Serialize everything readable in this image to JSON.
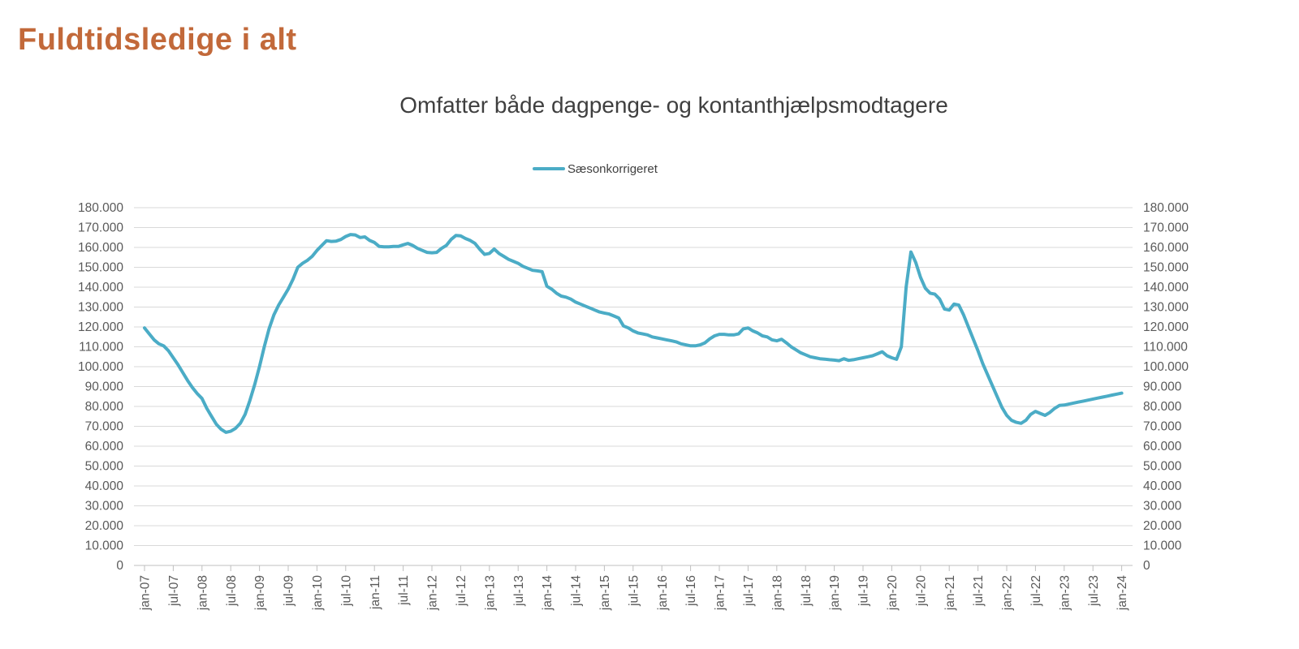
{
  "page": {
    "title": "Fuldtidsledige i alt"
  },
  "colors": {
    "page_title": "#C2693A",
    "line": "#4BACC6",
    "axis_text": "#595959",
    "grid": "#D9D9D9",
    "axis_line": "#BFBFBF"
  },
  "chart_data": {
    "type": "line",
    "title": "Omfatter både dagpenge- og kontanthjælpsmodtagere",
    "legend_position": "top-center",
    "grid": true,
    "duplicate_right_axis": true,
    "ylim": [
      0,
      180000
    ],
    "y_step": 10000,
    "y_tick_labels": [
      "180.000",
      "170.000",
      "160.000",
      "150.000",
      "140.000",
      "130.000",
      "120.000",
      "110.000",
      "100.000",
      "90.000",
      "80.000",
      "70.000",
      "60.000",
      "50.000",
      "40.000",
      "30.000",
      "20.000",
      "10.000",
      "0"
    ],
    "x_tick_labels": [
      "jan-07",
      "jul-07",
      "jan-08",
      "jul-08",
      "jan-09",
      "jul-09",
      "jan-10",
      "jul-10",
      "jan-11",
      "jul-11",
      "jan-12",
      "jul-12",
      "jan-13",
      "jul-13",
      "jan-14",
      "jul-14",
      "jan-15",
      "jul-15",
      "jan-16",
      "jul-16",
      "jan-17",
      "jul-17",
      "jan-18",
      "jul-18",
      "jan-19",
      "jul-19",
      "jan-20",
      "jul-20",
      "jan-21",
      "jul-21",
      "jan-22",
      "jul-22",
      "jan-23",
      "jul-23",
      "jan-24"
    ],
    "x_tick_interval_months": 6,
    "x_start_month": "jan-07",
    "x_end_month": "jan-24",
    "legend": [
      {
        "name": "Sæsonkorrigeret",
        "color": "#4BACC6"
      }
    ],
    "series": [
      {
        "name": "Sæsonkorrigeret",
        "color": "#4BACC6",
        "start": "jan-07",
        "frequency": "monthly",
        "values": [
          119500,
          116500,
          113500,
          111500,
          110500,
          108000,
          104500,
          101000,
          97000,
          93000,
          89500,
          86500,
          84000,
          79000,
          75000,
          71000,
          68500,
          67000,
          67500,
          69000,
          71500,
          76000,
          83000,
          91000,
          100000,
          110000,
          119000,
          126000,
          131000,
          135000,
          139000,
          144000,
          150000,
          152000,
          153500,
          155500,
          158500,
          161000,
          163400,
          163000,
          163200,
          164000,
          165500,
          166500,
          166300,
          165000,
          165300,
          163500,
          162500,
          160500,
          160300,
          160300,
          160500,
          160500,
          161300,
          162000,
          161000,
          159500,
          158500,
          157500,
          157300,
          157500,
          159500,
          161000,
          164000,
          166000,
          165800,
          164500,
          163500,
          162000,
          159000,
          156500,
          157000,
          159200,
          157000,
          155500,
          154000,
          153000,
          152000,
          150500,
          149500,
          148500,
          148200,
          147800,
          140500,
          139000,
          137000,
          135500,
          135000,
          134000,
          132500,
          131500,
          130500,
          129500,
          128500,
          127500,
          127000,
          126500,
          125500,
          124500,
          120500,
          119500,
          118000,
          117000,
          116500,
          116000,
          115000,
          114500,
          114000,
          113500,
          113000,
          112500,
          111500,
          111000,
          110500,
          110500,
          111000,
          112000,
          114000,
          115500,
          116300,
          116300,
          116000,
          116000,
          116500,
          119000,
          119500,
          118000,
          117000,
          115500,
          115000,
          113500,
          113000,
          113800,
          112000,
          110000,
          108500,
          107000,
          106000,
          105000,
          104500,
          104000,
          103800,
          103500,
          103300,
          103000,
          104000,
          103200,
          103500,
          104000,
          104500,
          105000,
          105500,
          106500,
          107500,
          105500,
          104500,
          103700,
          110000,
          140000,
          157700,
          152500,
          145000,
          139500,
          137000,
          136500,
          134000,
          129000,
          128500,
          131500,
          131000,
          126000,
          120000,
          114000,
          108000,
          101500,
          96000,
          90500,
          85000,
          79500,
          75500,
          73000,
          72000,
          71500,
          73000,
          76000,
          77500,
          76500,
          75500,
          77000,
          79000,
          80500,
          80700,
          81200,
          81700,
          82200,
          82700,
          83200,
          83700,
          84200,
          84700,
          85200,
          85700,
          86200,
          86700
        ]
      }
    ]
  }
}
